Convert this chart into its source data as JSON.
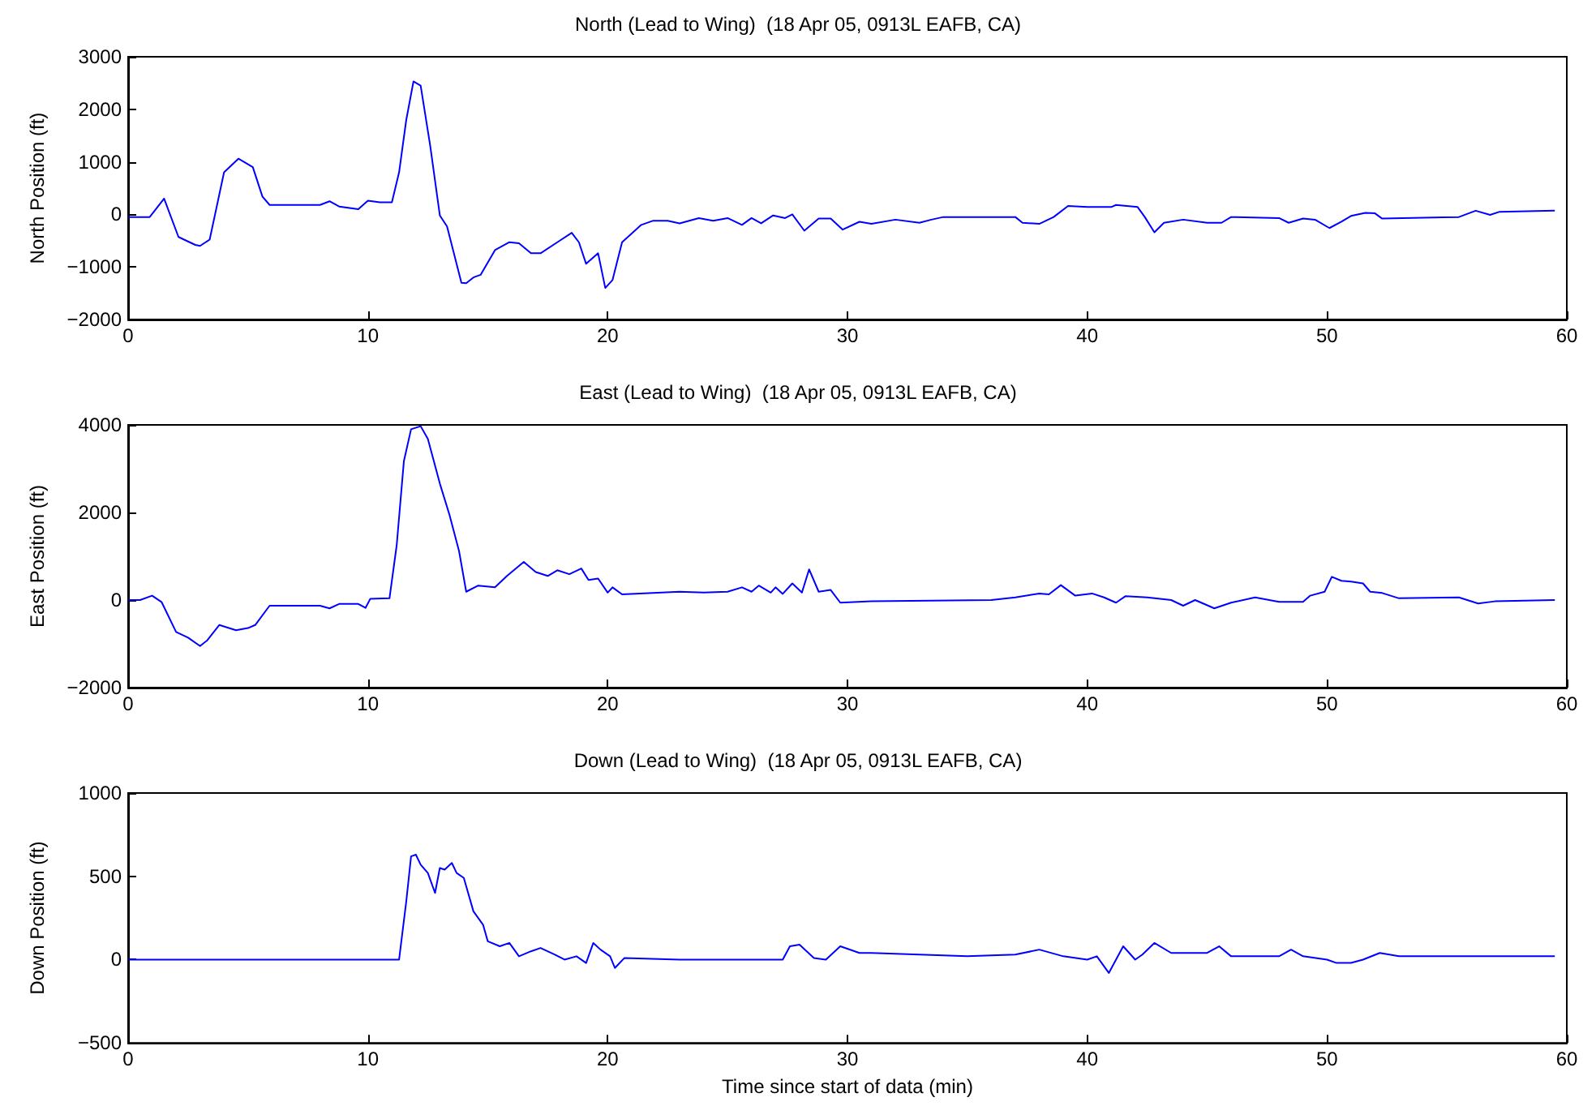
{
  "chart_data": [
    {
      "type": "line",
      "title": "North (Lead to Wing)  (18 Apr 05, 0913L EAFB, CA)",
      "ylabel": "North Position (ft)",
      "marker": "none",
      "xlim": [
        0,
        60
      ],
      "xticks": [
        0,
        10,
        20,
        30,
        40,
        50,
        60
      ],
      "ylim": [
        -2000,
        3000
      ],
      "yticks": [
        -2000,
        -1000,
        0,
        1000,
        2000,
        3000
      ],
      "series": [
        {
          "color": "#0000ff",
          "x": [
            0,
            0.9,
            1.5,
            2.1,
            2.8,
            3.0,
            3.4,
            4.0,
            4.6,
            5.2,
            5.6,
            5.9,
            8,
            8.4,
            8.8,
            9.6,
            10,
            10.5,
            11,
            11.3,
            11.6,
            11.9,
            12.2,
            12.6,
            13,
            13.3,
            13.9,
            14.1,
            14.4,
            14.7,
            15.3,
            15.9,
            16.3,
            16.8,
            17.2,
            17.9,
            18.5,
            18.8,
            19.1,
            19.4,
            19.6,
            19.9,
            20.2,
            20.6,
            21.4,
            21.9,
            22.5,
            23,
            23.8,
            24.4,
            25,
            25.6,
            26,
            26.4,
            26.9,
            27.4,
            27.7,
            28.2,
            28.8,
            29.3,
            29.8,
            30.5,
            31,
            32,
            33,
            33.5,
            34,
            37,
            37.3,
            38,
            38.6,
            39.2,
            40,
            41,
            41.2,
            42.1,
            42.4,
            42.8,
            43.2,
            44,
            45,
            45.6,
            46,
            48,
            48.4,
            49,
            49.5,
            50.1,
            50.6,
            51,
            51.6,
            52,
            52.3,
            55.5,
            56.2,
            56.8,
            57.2,
            59.5
          ],
          "values": [
            -50,
            -50,
            300,
            -430,
            -580,
            -600,
            -480,
            800,
            1060,
            900,
            340,
            180,
            180,
            250,
            150,
            100,
            260,
            230,
            230,
            800,
            1800,
            2530,
            2450,
            1300,
            -20,
            -230,
            -1300,
            -1310,
            -1200,
            -1150,
            -680,
            -530,
            -550,
            -740,
            -740,
            -530,
            -350,
            -530,
            -940,
            -820,
            -740,
            -1400,
            -1250,
            -530,
            -200,
            -120,
            -120,
            -170,
            -70,
            -120,
            -70,
            -200,
            -70,
            -170,
            -20,
            -70,
            0,
            -310,
            -80,
            -80,
            -290,
            -140,
            -180,
            -100,
            -160,
            -100,
            -50,
            -50,
            -160,
            -180,
            -50,
            160,
            140,
            140,
            180,
            140,
            -50,
            -340,
            -160,
            -100,
            -160,
            -160,
            -50,
            -70,
            -160,
            -80,
            -100,
            -260,
            -140,
            -30,
            30,
            20,
            -80,
            -50,
            70,
            -10,
            50,
            70
          ]
        }
      ]
    },
    {
      "type": "line",
      "title": "East (Lead to Wing)  (18 Apr 05, 0913L EAFB, CA)",
      "ylabel": "East Position (ft)",
      "marker": "none",
      "xlim": [
        0,
        60
      ],
      "xticks": [
        0,
        10,
        20,
        30,
        40,
        50,
        60
      ],
      "ylim": [
        -2000,
        4000
      ],
      "yticks": [
        -2000,
        0,
        2000,
        4000
      ],
      "series": [
        {
          "color": "#0000ff",
          "x": [
            0,
            0.5,
            1,
            1.4,
            2,
            2.5,
            3,
            3.3,
            3.8,
            4.5,
            5,
            5.3,
            5.9,
            8,
            8.4,
            8.8,
            9.6,
            9.9,
            10.1,
            10.9,
            11.2,
            11.5,
            11.8,
            12.2,
            12.5,
            13,
            13.4,
            13.8,
            14.1,
            14.6,
            15.3,
            15.8,
            16.5,
            17,
            17.5,
            17.9,
            18.4,
            18.9,
            19.2,
            19.6,
            20,
            20.2,
            20.6,
            23,
            24,
            25,
            25.6,
            26,
            26.3,
            26.8,
            27,
            27.3,
            27.7,
            28.1,
            28.4,
            28.8,
            29.3,
            29.7,
            31,
            36,
            37,
            38,
            38.4,
            38.9,
            39.5,
            40.2,
            40.7,
            41.2,
            41.6,
            42.5,
            43.5,
            44,
            44.5,
            45.3,
            46,
            47,
            48,
            49,
            49.3,
            49.9,
            50.2,
            50.6,
            51,
            51.5,
            51.8,
            52.3,
            53,
            55.5,
            56.3,
            57,
            59.5
          ],
          "values": [
            0,
            0,
            100,
            -50,
            -730,
            -860,
            -1050,
            -920,
            -570,
            -690,
            -640,
            -570,
            -130,
            -130,
            -190,
            -90,
            -90,
            -180,
            30,
            40,
            1250,
            3170,
            3900,
            3970,
            3680,
            2660,
            1950,
            1120,
            190,
            330,
            290,
            550,
            870,
            640,
            550,
            680,
            590,
            720,
            460,
            490,
            170,
            290,
            130,
            190,
            170,
            190,
            290,
            190,
            330,
            170,
            290,
            140,
            380,
            170,
            700,
            190,
            230,
            -60,
            -30,
            0,
            60,
            150,
            130,
            340,
            100,
            150,
            60,
            -60,
            90,
            60,
            0,
            -130,
            0,
            -190,
            -60,
            60,
            -40,
            -40,
            100,
            190,
            530,
            440,
            420,
            380,
            190,
            160,
            40,
            60,
            -80,
            -30,
            0
          ]
        }
      ]
    },
    {
      "type": "line",
      "title": "Down (Lead to Wing)  (18 Apr 05, 0913L EAFB, CA)",
      "xlabel": "Time since start of data (min)",
      "ylabel": "Down Position (ft)",
      "marker": "none",
      "xlim": [
        0,
        60
      ],
      "xticks": [
        0,
        10,
        20,
        30,
        40,
        50,
        60
      ],
      "ylim": [
        -500,
        1000
      ],
      "yticks": [
        -500,
        0,
        500,
        1000
      ],
      "series": [
        {
          "color": "#0000ff",
          "x": [
            0,
            11.3,
            11.6,
            11.8,
            12,
            12.2,
            12.5,
            12.8,
            13,
            13.2,
            13.5,
            13.7,
            14,
            14.4,
            14.8,
            15,
            15.5,
            15.9,
            16.3,
            16.8,
            17.2,
            17.8,
            18.2,
            18.7,
            19.1,
            19.4,
            19.7,
            20.1,
            20.3,
            20.7,
            23,
            27.3,
            27.6,
            28,
            28.6,
            29.1,
            29.7,
            30.5,
            31,
            33,
            35,
            37,
            38,
            39,
            40,
            40.4,
            40.9,
            41.5,
            42,
            42.3,
            42.8,
            43.5,
            44.5,
            45,
            45.5,
            46,
            48,
            48.5,
            49,
            50,
            50.4,
            51,
            51.5,
            52.2,
            53,
            59.5
          ],
          "values": [
            0,
            0,
            350,
            620,
            630,
            570,
            520,
            400,
            550,
            540,
            580,
            520,
            490,
            290,
            210,
            110,
            80,
            100,
            20,
            50,
            70,
            30,
            0,
            20,
            -20,
            100,
            60,
            20,
            -50,
            10,
            0,
            0,
            80,
            90,
            10,
            0,
            80,
            40,
            40,
            30,
            20,
            30,
            60,
            20,
            0,
            20,
            -80,
            80,
            0,
            30,
            100,
            40,
            40,
            40,
            80,
            20,
            20,
            60,
            20,
            0,
            -20,
            -20,
            0,
            40,
            20,
            20
          ]
        }
      ]
    }
  ]
}
